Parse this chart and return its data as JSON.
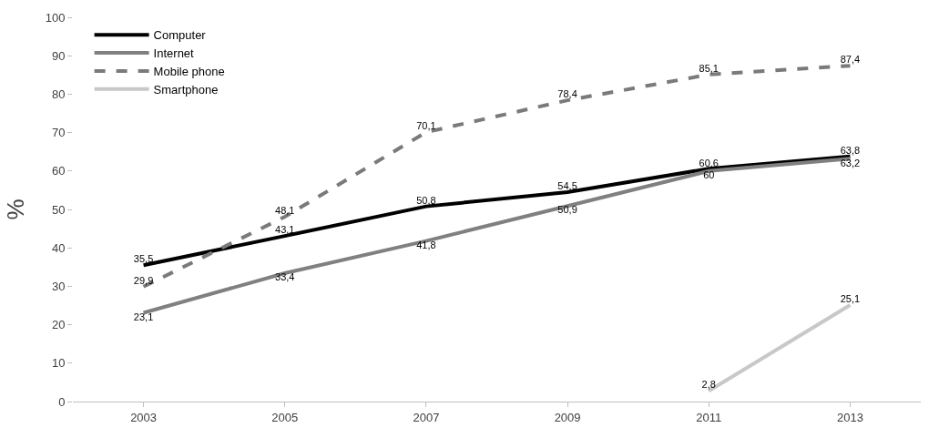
{
  "chart_data": {
    "type": "line",
    "ylabel": "%",
    "categories": [
      "2003",
      "2005",
      "2007",
      "2009",
      "2011",
      "2013"
    ],
    "ylim": [
      0,
      100
    ],
    "yticks": [
      0,
      10,
      20,
      30,
      40,
      50,
      60,
      70,
      80,
      90,
      100
    ],
    "legend": "top left",
    "marker": "none",
    "series": [
      {
        "name": "Computer",
        "color": "#000000",
        "line_style": "solid",
        "values": [
          35.5,
          43.1,
          50.8,
          54.5,
          60.6,
          63.8
        ],
        "value_labels": [
          "35,5",
          "43,1",
          "50,8",
          "54,5",
          "60,6",
          "63,8"
        ]
      },
      {
        "name": "Internet",
        "color": "#808080",
        "line_style": "solid",
        "values": [
          23.1,
          33.4,
          41.8,
          50.9,
          60,
          63.2
        ],
        "value_labels": [
          "23,1",
          "33,4",
          "41,8",
          "50,9",
          "60",
          "63,2"
        ]
      },
      {
        "name": "Mobile phone",
        "color": "#7a7a7a",
        "line_style": "dashed",
        "values": [
          29.9,
          48.1,
          70.1,
          78.4,
          85.1,
          87.4
        ],
        "value_labels": [
          "29,9",
          "48,1",
          "70,1",
          "78,4",
          "85,1",
          "87,4"
        ]
      },
      {
        "name": "Smartphone",
        "color": "#c8c8c8",
        "line_style": "solid",
        "values": [
          null,
          null,
          null,
          null,
          2.8,
          25.1
        ],
        "value_labels": [
          null,
          null,
          null,
          null,
          "2,8",
          "25,1"
        ]
      }
    ]
  }
}
